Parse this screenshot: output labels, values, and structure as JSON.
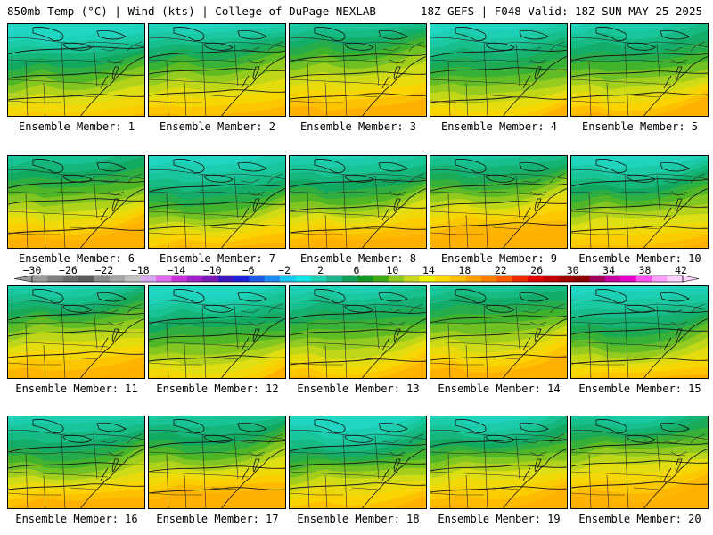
{
  "header": {
    "left_title": "850mb Temp (°C) | Wind (kts) | College of DuPage NEXLAB",
    "right_title": "18Z GEFS | F048 Valid: 18Z SUN MAY 25 2025"
  },
  "panels": [
    {
      "label": "Ensemble Member: 1"
    },
    {
      "label": "Ensemble Member: 2"
    },
    {
      "label": "Ensemble Member: 3"
    },
    {
      "label": "Ensemble Member: 4"
    },
    {
      "label": "Ensemble Member: 5"
    },
    {
      "label": "Ensemble Member: 6"
    },
    {
      "label": "Ensemble Member: 7"
    },
    {
      "label": "Ensemble Member: 8"
    },
    {
      "label": "Ensemble Member: 9"
    },
    {
      "label": "Ensemble Member: 10"
    },
    {
      "label": "Ensemble Member: 11"
    },
    {
      "label": "Ensemble Member: 12"
    },
    {
      "label": "Ensemble Member: 13"
    },
    {
      "label": "Ensemble Member: 14"
    },
    {
      "label": "Ensemble Member: 15"
    },
    {
      "label": "Ensemble Member: 16"
    },
    {
      "label": "Ensemble Member: 17"
    },
    {
      "label": "Ensemble Member: 18"
    },
    {
      "label": "Ensemble Member: 19"
    },
    {
      "label": "Ensemble Member: 20"
    }
  ],
  "colorbar": {
    "tick_labels": [
      "−30",
      "−26",
      "−22",
      "−18",
      "−14",
      "−10",
      "−6",
      "−2",
      "2",
      "6",
      "10",
      "14",
      "18",
      "22",
      "26",
      "30",
      "34",
      "38",
      "42"
    ],
    "colors": [
      "#9a9a9a",
      "#7e7e7e",
      "#6a6a6a",
      "#5a5a5a",
      "#8a8a8a",
      "#a6a6a6",
      "#c2c2c2",
      "#d7a8ef",
      "#e06bea",
      "#c832d8",
      "#a020c8",
      "#7a1ab4",
      "#4016c0",
      "#2020d8",
      "#1e5ae6",
      "#1e8cf0",
      "#15c8ee",
      "#10e6e6",
      "#1ed2b4",
      "#1eb48c",
      "#11a05a",
      "#149628",
      "#3caa14",
      "#8cc81e",
      "#c8d81e",
      "#f0f000",
      "#ffd800",
      "#ffbe00",
      "#ffa000",
      "#ff8000",
      "#ff5a00",
      "#f02800",
      "#e00000",
      "#c00000",
      "#a00000",
      "#880000",
      "#a0005a",
      "#c800a0",
      "#e600c8",
      "#ff50f0",
      "#ffa0ff",
      "#ffd2ff"
    ]
  }
}
